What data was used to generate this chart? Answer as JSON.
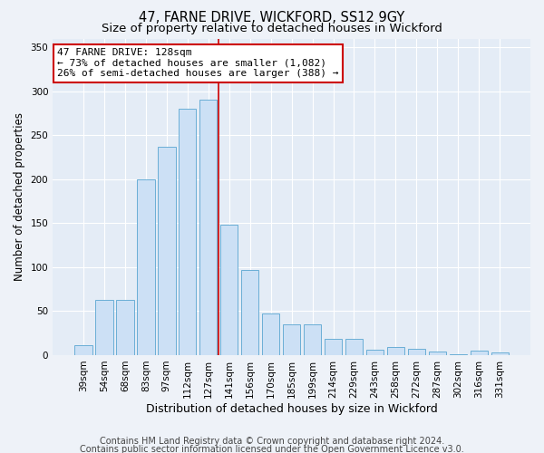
{
  "title1": "47, FARNE DRIVE, WICKFORD, SS12 9GY",
  "title2": "Size of property relative to detached houses in Wickford",
  "xlabel": "Distribution of detached houses by size in Wickford",
  "ylabel": "Number of detached properties",
  "categories": [
    "39sqm",
    "54sqm",
    "68sqm",
    "83sqm",
    "97sqm",
    "112sqm",
    "127sqm",
    "141sqm",
    "156sqm",
    "170sqm",
    "185sqm",
    "199sqm",
    "214sqm",
    "229sqm",
    "243sqm",
    "258sqm",
    "272sqm",
    "287sqm",
    "302sqm",
    "316sqm",
    "331sqm"
  ],
  "values": [
    11,
    63,
    63,
    200,
    237,
    280,
    290,
    148,
    97,
    47,
    35,
    35,
    18,
    19,
    6,
    9,
    7,
    4,
    1,
    5,
    3
  ],
  "bar_color": "#cce0f5",
  "bar_edge_color": "#6aaed6",
  "highlight_line_color": "#cc0000",
  "highlight_line_index": 6,
  "annotation_text": "47 FARNE DRIVE: 128sqm\n← 73% of detached houses are smaller (1,082)\n26% of semi-detached houses are larger (388) →",
  "annotation_box_color": "#ffffff",
  "annotation_box_edge_color": "#cc0000",
  "ylim": [
    0,
    360
  ],
  "yticks": [
    0,
    50,
    100,
    150,
    200,
    250,
    300,
    350
  ],
  "footer1": "Contains HM Land Registry data © Crown copyright and database right 2024.",
  "footer2": "Contains public sector information licensed under the Open Government Licence v3.0.",
  "bg_color": "#eef2f8",
  "plot_bg_color": "#e4ecf6",
  "grid_color": "#ffffff",
  "title1_fontsize": 10.5,
  "title2_fontsize": 9.5,
  "xlabel_fontsize": 9,
  "ylabel_fontsize": 8.5,
  "tick_fontsize": 7.5,
  "footer_fontsize": 7,
  "annotation_fontsize": 8
}
